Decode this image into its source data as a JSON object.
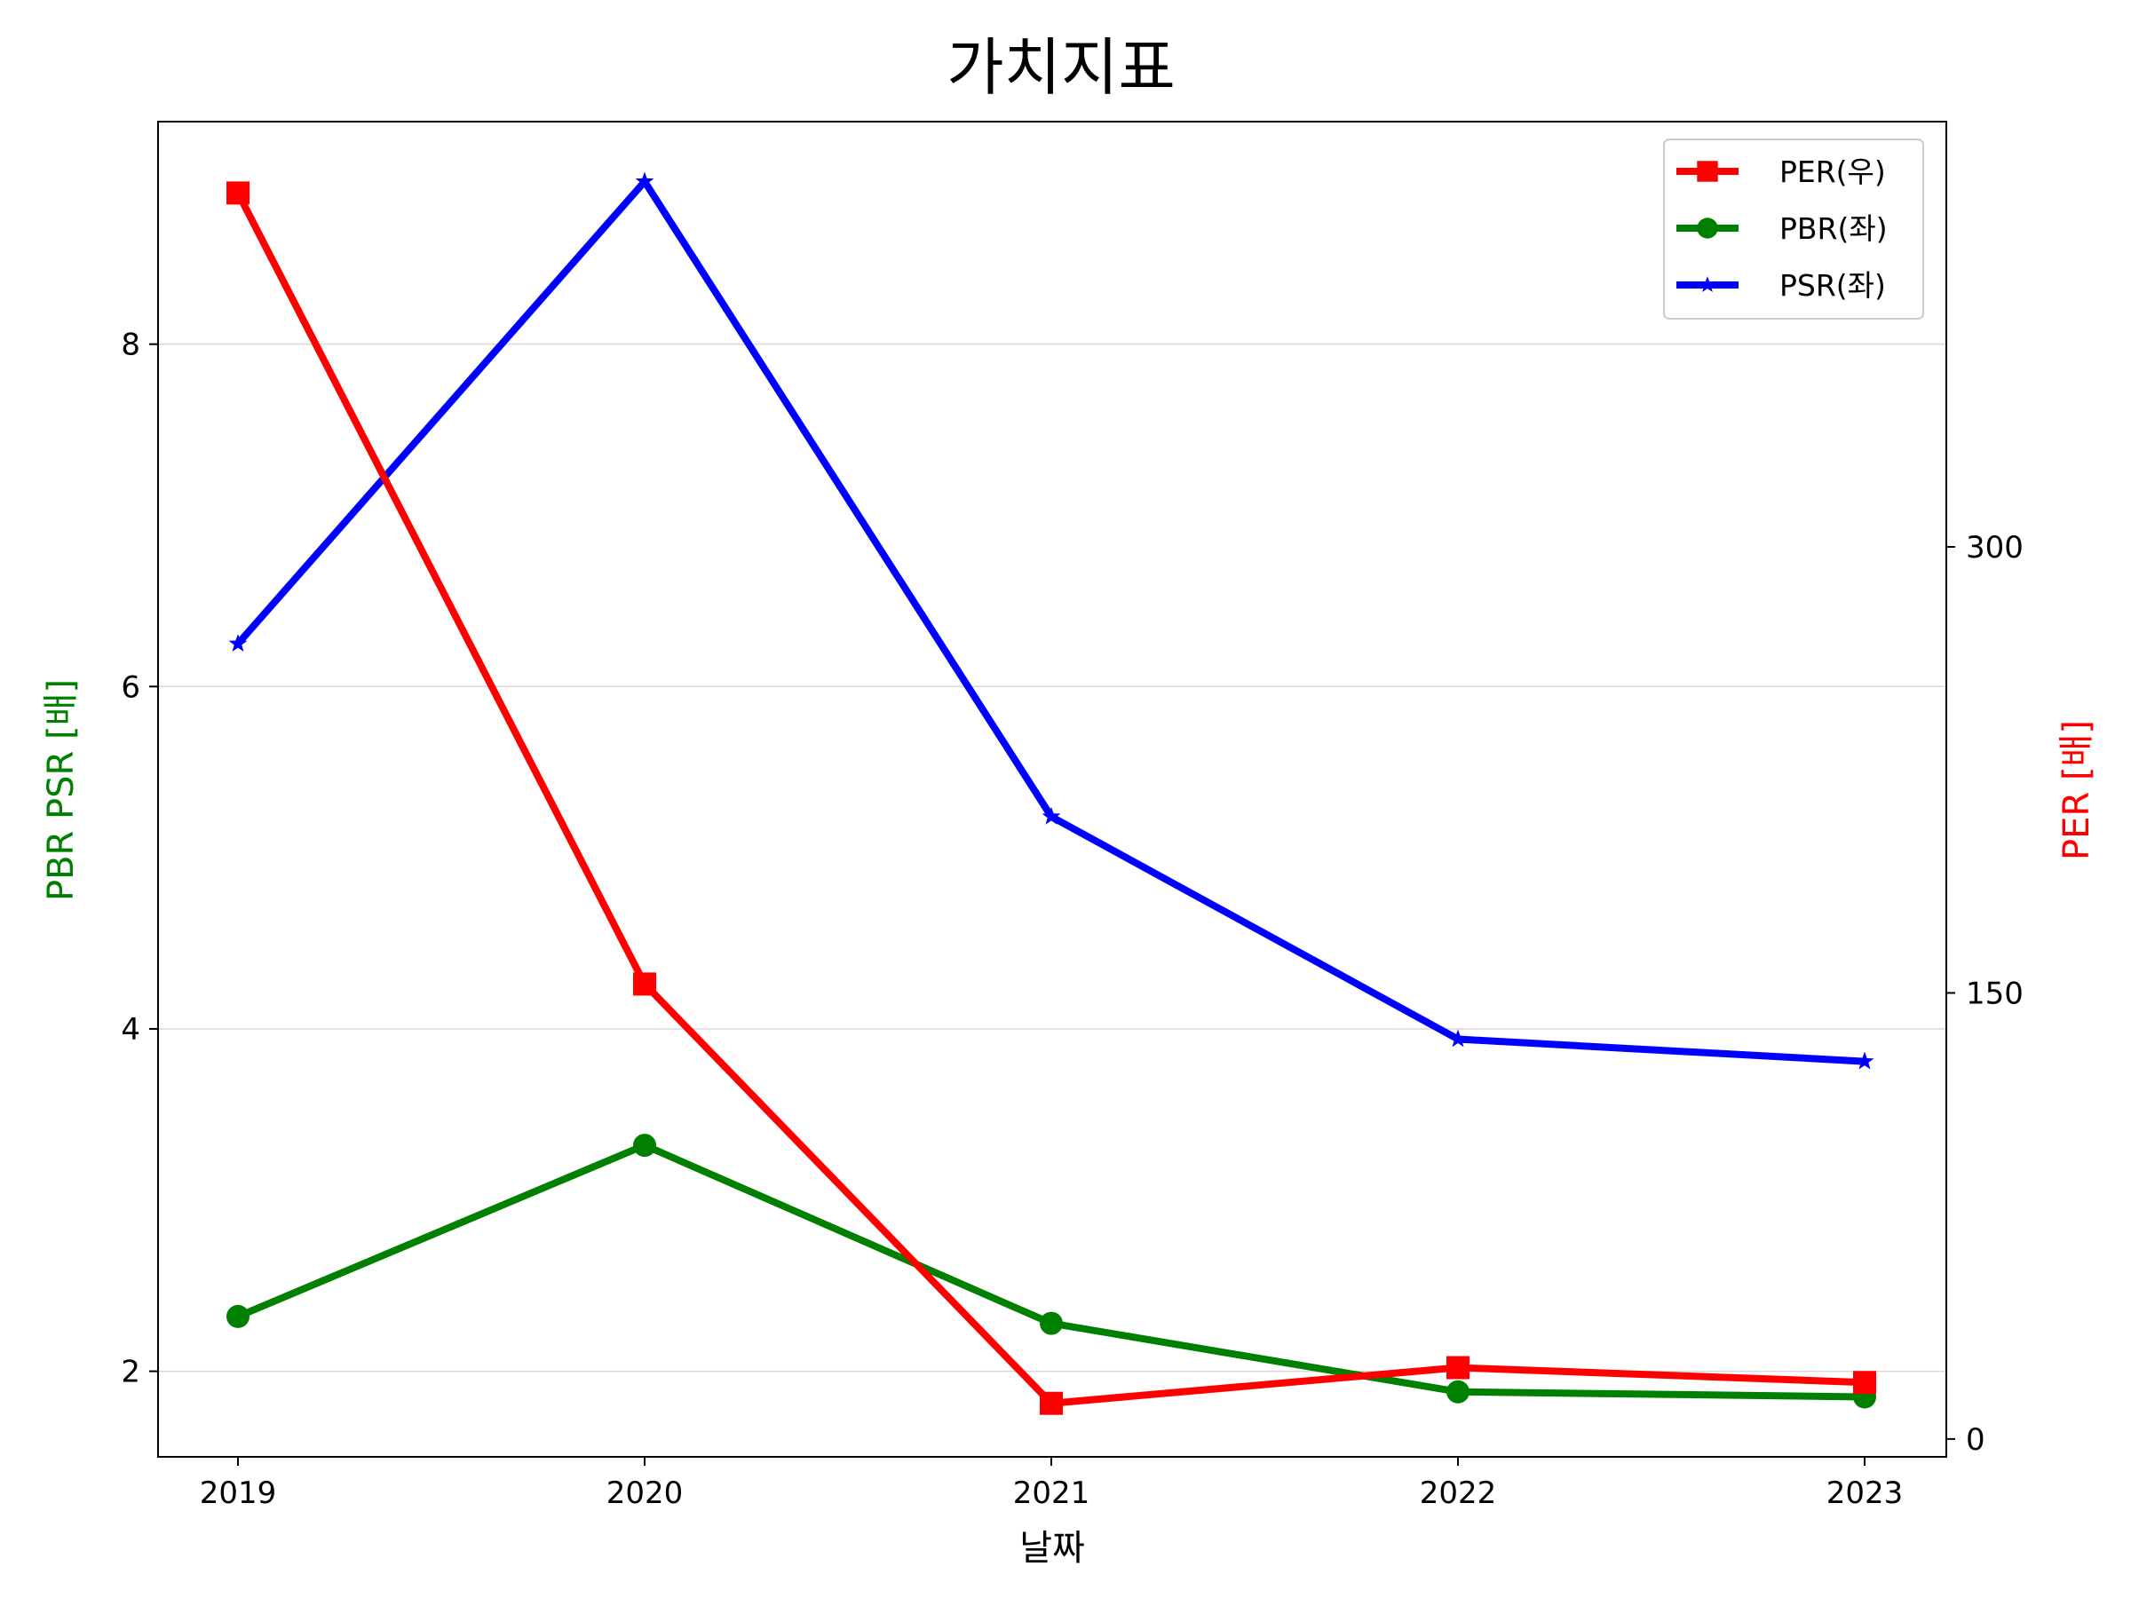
{
  "chart_data": {
    "type": "line",
    "title": "가치지표",
    "xlabel": "날짜",
    "ylabel_left": "PBR PSR [배]",
    "ylabel_right": "PER [배]",
    "categories": [
      "2019",
      "2020",
      "2021",
      "2022",
      "2023"
    ],
    "left_axis": {
      "ylim": [
        1.5,
        9.3
      ],
      "ticks": [
        "2",
        "4",
        "6",
        "8"
      ]
    },
    "right_axis": {
      "ylim": [
        -6,
        443
      ],
      "ticks": [
        "0",
        "150",
        "300"
      ]
    },
    "grid": "horizontal (left axis)",
    "legend_position": "top-right",
    "series": [
      {
        "name": "PER(우)",
        "axis": "right",
        "color": "#ff0000",
        "marker": "square",
        "values": [
          419,
          153,
          12,
          24,
          19
        ]
      },
      {
        "name": "PBR(좌)",
        "axis": "left",
        "color": "#008000",
        "marker": "circle",
        "values": [
          2.32,
          3.32,
          2.28,
          1.88,
          1.85
        ]
      },
      {
        "name": "PSR(좌)",
        "axis": "left",
        "color": "#0000ff",
        "marker": "star",
        "values": [
          6.25,
          8.95,
          5.24,
          3.94,
          3.81
        ]
      }
    ],
    "colors": {
      "left_label": "#008000",
      "right_label": "#ff0000"
    }
  }
}
